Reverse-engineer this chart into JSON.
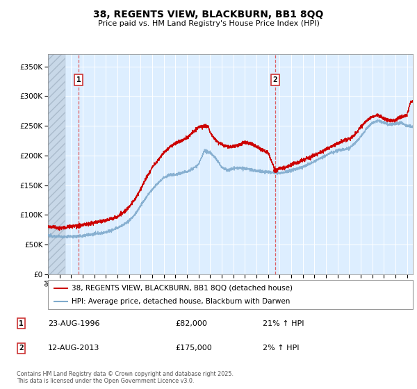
{
  "title": "38, REGENTS VIEW, BLACKBURN, BB1 8QQ",
  "subtitle": "Price paid vs. HM Land Registry's House Price Index (HPI)",
  "legend_line1": "38, REGENTS VIEW, BLACKBURN, BB1 8QQ (detached house)",
  "legend_line2": "HPI: Average price, detached house, Blackburn with Darwen",
  "footer": "Contains HM Land Registry data © Crown copyright and database right 2025.\nThis data is licensed under the Open Government Licence v3.0.",
  "sale1_label": "1",
  "sale1_date": "23-AUG-1996",
  "sale1_price": "£82,000",
  "sale1_hpi": "21% ↑ HPI",
  "sale2_label": "2",
  "sale2_date": "12-AUG-2013",
  "sale2_price": "£175,000",
  "sale2_hpi": "2% ↑ HPI",
  "sale1_year": 1996.65,
  "sale1_value": 82000,
  "sale2_year": 2013.62,
  "sale2_value": 175000,
  "ylim": [
    0,
    370000
  ],
  "xlim_start": 1994,
  "xlim_end": 2025.5,
  "red_color": "#cc0000",
  "blue_color": "#7faacc",
  "bg_plot": "#ddeeff",
  "bg_hatch_color": "#c8d8e8",
  "grid_color": "#ffffff",
  "dashed_vline_color": "#dd4444",
  "hpi_anchors": [
    [
      1994.0,
      65000
    ],
    [
      1994.5,
      64000
    ],
    [
      1995.0,
      63500
    ],
    [
      1995.5,
      63000
    ],
    [
      1996.0,
      63500
    ],
    [
      1996.5,
      64000
    ],
    [
      1997.0,
      65000
    ],
    [
      1997.5,
      66000
    ],
    [
      1998.0,
      67500
    ],
    [
      1998.5,
      69000
    ],
    [
      1999.0,
      71000
    ],
    [
      1999.5,
      74000
    ],
    [
      2000.0,
      78000
    ],
    [
      2000.5,
      83000
    ],
    [
      2001.0,
      90000
    ],
    [
      2001.5,
      100000
    ],
    [
      2002.0,
      115000
    ],
    [
      2002.5,
      130000
    ],
    [
      2003.0,
      143000
    ],
    [
      2003.5,
      153000
    ],
    [
      2004.0,
      163000
    ],
    [
      2004.5,
      167000
    ],
    [
      2005.0,
      168000
    ],
    [
      2005.5,
      170000
    ],
    [
      2006.0,
      173000
    ],
    [
      2006.5,
      178000
    ],
    [
      2007.0,
      185000
    ],
    [
      2007.5,
      207000
    ],
    [
      2008.0,
      205000
    ],
    [
      2008.5,
      195000
    ],
    [
      2009.0,
      180000
    ],
    [
      2009.5,
      175000
    ],
    [
      2010.0,
      178000
    ],
    [
      2010.5,
      179000
    ],
    [
      2011.0,
      178000
    ],
    [
      2011.5,
      176000
    ],
    [
      2012.0,
      174000
    ],
    [
      2012.5,
      173000
    ],
    [
      2013.0,
      172000
    ],
    [
      2013.5,
      171000
    ],
    [
      2014.0,
      170000
    ],
    [
      2014.5,
      172000
    ],
    [
      2015.0,
      175000
    ],
    [
      2015.5,
      178000
    ],
    [
      2016.0,
      181000
    ],
    [
      2016.5,
      185000
    ],
    [
      2017.0,
      190000
    ],
    [
      2017.5,
      195000
    ],
    [
      2018.0,
      200000
    ],
    [
      2018.5,
      205000
    ],
    [
      2019.0,
      208000
    ],
    [
      2019.5,
      210000
    ],
    [
      2020.0,
      212000
    ],
    [
      2020.5,
      220000
    ],
    [
      2021.0,
      232000
    ],
    [
      2021.5,
      245000
    ],
    [
      2022.0,
      255000
    ],
    [
      2022.5,
      258000
    ],
    [
      2023.0,
      255000
    ],
    [
      2023.5,
      252000
    ],
    [
      2024.0,
      253000
    ],
    [
      2024.5,
      255000
    ],
    [
      2025.0,
      250000
    ],
    [
      2025.5,
      248000
    ]
  ],
  "price_anchors": [
    [
      1994.0,
      80000
    ],
    [
      1994.5,
      79000
    ],
    [
      1995.0,
      78000
    ],
    [
      1995.5,
      78500
    ],
    [
      1996.0,
      80000
    ],
    [
      1996.65,
      82000
    ],
    [
      1997.0,
      83000
    ],
    [
      1997.5,
      85000
    ],
    [
      1998.0,
      87000
    ],
    [
      1998.5,
      89000
    ],
    [
      1999.0,
      91000
    ],
    [
      1999.5,
      93000
    ],
    [
      2000.0,
      97000
    ],
    [
      2000.5,
      104000
    ],
    [
      2001.0,
      113000
    ],
    [
      2001.5,
      126000
    ],
    [
      2002.0,
      143000
    ],
    [
      2002.5,
      163000
    ],
    [
      2003.0,
      180000
    ],
    [
      2003.5,
      192000
    ],
    [
      2004.0,
      204000
    ],
    [
      2004.5,
      214000
    ],
    [
      2005.0,
      220000
    ],
    [
      2005.5,
      225000
    ],
    [
      2006.0,
      230000
    ],
    [
      2006.5,
      238000
    ],
    [
      2007.0,
      248000
    ],
    [
      2007.5,
      250000
    ],
    [
      2007.83,
      248000
    ],
    [
      2008.0,
      238000
    ],
    [
      2008.5,
      225000
    ],
    [
      2009.0,
      218000
    ],
    [
      2009.5,
      215000
    ],
    [
      2010.0,
      215000
    ],
    [
      2010.5,
      218000
    ],
    [
      2011.0,
      222000
    ],
    [
      2011.5,
      220000
    ],
    [
      2012.0,
      215000
    ],
    [
      2012.5,
      210000
    ],
    [
      2013.0,
      205000
    ],
    [
      2013.62,
      175000
    ],
    [
      2014.0,
      178000
    ],
    [
      2014.5,
      180000
    ],
    [
      2015.0,
      184000
    ],
    [
      2015.5,
      188000
    ],
    [
      2016.0,
      192000
    ],
    [
      2016.5,
      196000
    ],
    [
      2017.0,
      200000
    ],
    [
      2017.5,
      205000
    ],
    [
      2018.0,
      210000
    ],
    [
      2018.5,
      215000
    ],
    [
      2019.0,
      220000
    ],
    [
      2019.5,
      225000
    ],
    [
      2020.0,
      228000
    ],
    [
      2020.5,
      235000
    ],
    [
      2021.0,
      248000
    ],
    [
      2021.5,
      258000
    ],
    [
      2022.0,
      265000
    ],
    [
      2022.5,
      268000
    ],
    [
      2023.0,
      262000
    ],
    [
      2023.5,
      258000
    ],
    [
      2024.0,
      260000
    ],
    [
      2024.5,
      265000
    ],
    [
      2025.0,
      268000
    ],
    [
      2025.3,
      290000
    ],
    [
      2025.5,
      292000
    ]
  ]
}
